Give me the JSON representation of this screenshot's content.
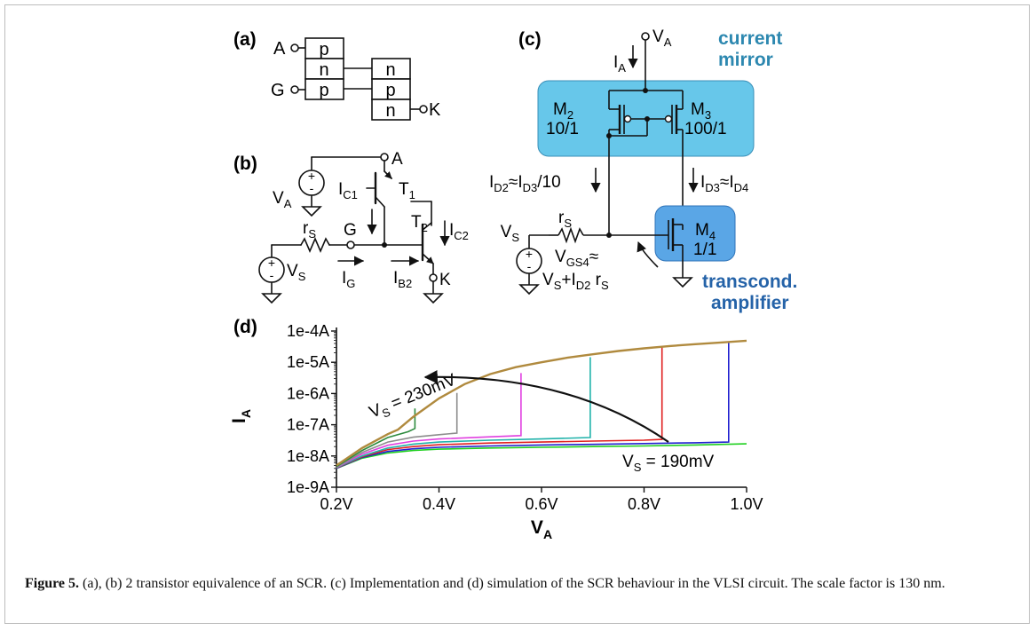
{
  "panel_a": {
    "label": "(a)",
    "anode": "A",
    "gate": "G",
    "cathode": "K",
    "layers_left": [
      "p",
      "n",
      "p"
    ],
    "layers_right": [
      "n",
      "p",
      "n"
    ]
  },
  "panel_b": {
    "label": "(b)",
    "node_a": "A",
    "source_va": "V",
    "source_va_sub": "A",
    "t1": "T",
    "t1_sub": "1",
    "t2": "T",
    "t2_sub": "2",
    "ic1": "I",
    "ic1_sub": "C1",
    "ic2": "I",
    "ic2_sub": "C2",
    "rs": "r",
    "rs_sub": "S",
    "node_g": "G",
    "vs": "V",
    "vs_sub": "S",
    "ig": "I",
    "ig_sub": "G",
    "ib2": "I",
    "ib2_sub": "B2",
    "node_k": "K",
    "plus": "+",
    "minus": "-"
  },
  "panel_c": {
    "label": "(c)",
    "va": "V",
    "va_sub": "A",
    "ia": "I",
    "ia_sub": "A",
    "mirror_label_1": "current",
    "mirror_label_2": "mirror",
    "m2": "M",
    "m2_sub": "2",
    "m2_ratio": "10/1",
    "m3": "M",
    "m3_sub": "3",
    "m3_ratio": "100/1",
    "id2_eq": "I",
    "id2_sub": "D2",
    "id2_approx": "≈I",
    "id2_ref_sub": "D3",
    "id2_div": "/10",
    "id3": "I",
    "id3_sub": "D3",
    "id3_approx": "≈I",
    "id3_ref_sub": "D4",
    "vs": "V",
    "vs_sub": "S",
    "rs": "r",
    "rs_sub": "S",
    "m4": "M",
    "m4_sub": "4",
    "m4_ratio": "1/1",
    "vgs_1": "V",
    "vgs_1_sub": "GS4",
    "vgs_1_approx": "≈",
    "vgs_2a": "V",
    "vgs_2a_sub": "S",
    "vgs_2b": "+I",
    "vgs_2b_sub": "D2",
    "vgs_2c": " r",
    "vgs_2c_sub": "S",
    "amp_label_1": "transcond.",
    "amp_label_2": "amplifier",
    "plus": "+",
    "minus": "-"
  },
  "panel_d": {
    "label": "(d)"
  },
  "chart_data": {
    "type": "line",
    "xlabel": "V",
    "xlabel_sub": "A",
    "ylabel": "I",
    "ylabel_sub": "A",
    "yscale": "log",
    "xlim": [
      0.2,
      1.0
    ],
    "ylim": [
      1e-09,
      0.0001
    ],
    "x_ticks": [
      0.2,
      0.4,
      0.6,
      0.8,
      1.0
    ],
    "x_tick_labels": [
      "0.2V",
      "0.4V",
      "0.6V",
      "0.8V",
      "1.0V"
    ],
    "y_ticks": [
      0.0001,
      1e-05,
      1e-06,
      1e-07,
      1e-08,
      1e-09
    ],
    "y_tick_labels": [
      "1e-4A",
      "1e-5A",
      "1e-6A",
      "1e-7A",
      "1e-8A",
      "1e-9A"
    ],
    "annotation_top": {
      "text": "V",
      "sub": "S",
      "rest": " = 230mV"
    },
    "annotation_bottom": {
      "text": "V",
      "sub": "S",
      "rest": " = 190mV"
    },
    "series": [
      {
        "color": "#b08a3e",
        "switch_v": 0.32,
        "points": [
          [
            0.2,
            5e-09
          ],
          [
            0.25,
            1.8e-08
          ],
          [
            0.3,
            5e-08
          ],
          [
            0.32,
            7e-08
          ],
          [
            0.35,
            1.8e-07
          ],
          [
            0.4,
            7e-07
          ],
          [
            0.45,
            2e-06
          ],
          [
            0.5,
            4.2e-06
          ],
          [
            0.55,
            7e-06
          ],
          [
            0.6,
            1e-05
          ],
          [
            0.65,
            1.4e-05
          ],
          [
            0.7,
            1.8e-05
          ],
          [
            0.75,
            2.3e-05
          ],
          [
            0.8,
            2.8e-05
          ],
          [
            0.85,
            3.3e-05
          ],
          [
            0.9,
            3.8e-05
          ],
          [
            0.95,
            4.3e-05
          ],
          [
            1.0,
            4.9e-05
          ]
        ]
      },
      {
        "color": "#2e8b3e",
        "switch_v": 0.353,
        "points": [
          [
            0.2,
            4.6e-09
          ],
          [
            0.25,
            1.5e-08
          ],
          [
            0.3,
            3.9e-08
          ],
          [
            0.34,
            6e-08
          ],
          [
            0.353,
            7.6e-08
          ],
          [
            0.353,
            3.3e-07
          ]
        ]
      },
      {
        "color": "#8c8c8c",
        "switch_v": 0.435,
        "points": [
          [
            0.2,
            4.4e-09
          ],
          [
            0.25,
            1.3e-08
          ],
          [
            0.3,
            2.8e-08
          ],
          [
            0.35,
            4e-08
          ],
          [
            0.4,
            4.8e-08
          ],
          [
            0.435,
            5.4e-08
          ],
          [
            0.435,
            1.05e-06
          ]
        ]
      },
      {
        "color": "#e040e0",
        "switch_v": 0.56,
        "points": [
          [
            0.2,
            4.3e-09
          ],
          [
            0.25,
            1.15e-08
          ],
          [
            0.3,
            2.2e-08
          ],
          [
            0.35,
            3e-08
          ],
          [
            0.4,
            3.5e-08
          ],
          [
            0.5,
            4.1e-08
          ],
          [
            0.56,
            4.5e-08
          ],
          [
            0.56,
            4.5e-06
          ]
        ]
      },
      {
        "color": "#20b2aa",
        "switch_v": 0.695,
        "points": [
          [
            0.2,
            4.2e-09
          ],
          [
            0.25,
            1e-08
          ],
          [
            0.3,
            1.8e-08
          ],
          [
            0.35,
            2.4e-08
          ],
          [
            0.4,
            2.8e-08
          ],
          [
            0.5,
            3.2e-08
          ],
          [
            0.6,
            3.5e-08
          ],
          [
            0.695,
            3.9e-08
          ],
          [
            0.695,
            1.45e-05
          ]
        ]
      },
      {
        "color": "#e02020",
        "switch_v": 0.835,
        "points": [
          [
            0.2,
            4.1e-09
          ],
          [
            0.25,
            9.5e-09
          ],
          [
            0.3,
            1.6e-08
          ],
          [
            0.35,
            2e-08
          ],
          [
            0.4,
            2.3e-08
          ],
          [
            0.5,
            2.6e-08
          ],
          [
            0.6,
            2.8e-08
          ],
          [
            0.7,
            3e-08
          ],
          [
            0.8,
            3.2e-08
          ],
          [
            0.835,
            3.4e-08
          ],
          [
            0.835,
            3e-05
          ]
        ]
      },
      {
        "color": "#2020d0",
        "switch_v": 0.965,
        "points": [
          [
            0.2,
            4e-09
          ],
          [
            0.25,
            9e-09
          ],
          [
            0.3,
            1.4e-08
          ],
          [
            0.35,
            1.7e-08
          ],
          [
            0.4,
            1.9e-08
          ],
          [
            0.5,
            2.1e-08
          ],
          [
            0.6,
            2.25e-08
          ],
          [
            0.7,
            2.35e-08
          ],
          [
            0.8,
            2.5e-08
          ],
          [
            0.9,
            2.65e-08
          ],
          [
            0.965,
            2.8e-08
          ],
          [
            0.965,
            4.5e-05
          ]
        ]
      },
      {
        "color": "#20d020",
        "switch_v": null,
        "points": [
          [
            0.2,
            4e-09
          ],
          [
            0.25,
            8.5e-09
          ],
          [
            0.3,
            1.25e-08
          ],
          [
            0.35,
            1.5e-08
          ],
          [
            0.4,
            1.65e-08
          ],
          [
            0.5,
            1.8e-08
          ],
          [
            0.6,
            1.9e-08
          ],
          [
            0.7,
            2e-08
          ],
          [
            0.8,
            2.1e-08
          ],
          [
            0.9,
            2.25e-08
          ],
          [
            1.0,
            2.45e-08
          ]
        ]
      }
    ]
  },
  "caption": {
    "figure_label": "Figure 5.",
    "text": " (a), (b) 2 transistor equivalence of an SCR. (c) Implementation and (d) simulation of the SCR behaviour in the VLSI circuit. The scale factor is 130 nm."
  }
}
